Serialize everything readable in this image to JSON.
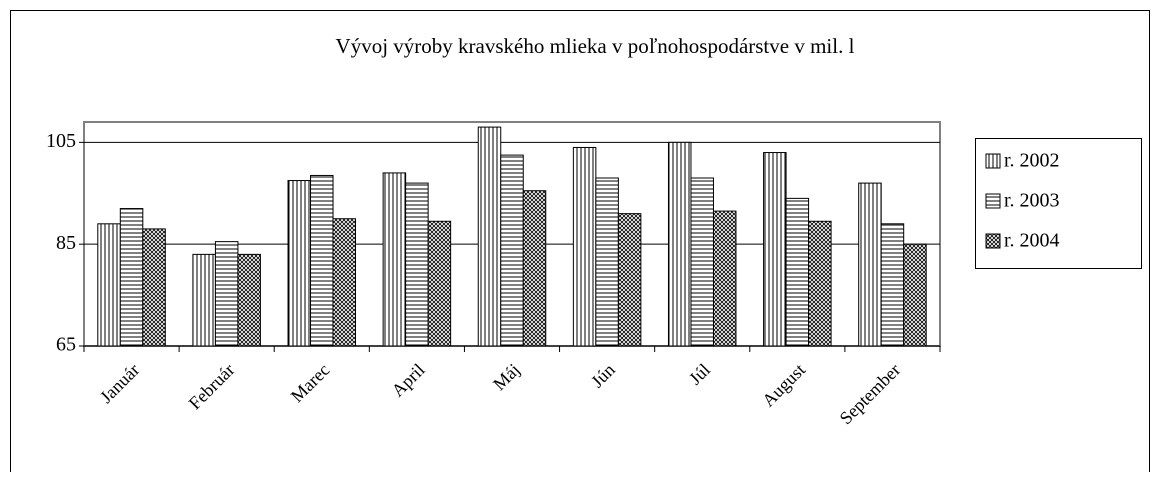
{
  "chart_data": {
    "type": "bar",
    "title": "Vývoj výroby kravského mlieka v poľnohospodárstve v mil. l",
    "categories": [
      "Január",
      "Február",
      "Marec",
      "April",
      "Máj",
      "Jún",
      "Júl",
      "August",
      "September"
    ],
    "series": [
      {
        "name": "r. 2002",
        "color": "#000000",
        "pattern": "vertical",
        "values": [
          89,
          83,
          97.5,
          99,
          108,
          104,
          105,
          103,
          97
        ]
      },
      {
        "name": "r. 2003",
        "color": "#000000",
        "pattern": "horizontal",
        "values": [
          92,
          85.5,
          98.5,
          97,
          102.5,
          98,
          98,
          94,
          89
        ]
      },
      {
        "name": "r. 2004",
        "color": "#000000",
        "pattern": "crosshatch",
        "values": [
          88,
          83,
          90,
          89.5,
          95.5,
          91,
          91.5,
          89.5,
          85
        ]
      }
    ],
    "ylim": [
      65,
      109
    ],
    "yticks": [
      65,
      85,
      105
    ],
    "grid": true,
    "legend": "right"
  }
}
